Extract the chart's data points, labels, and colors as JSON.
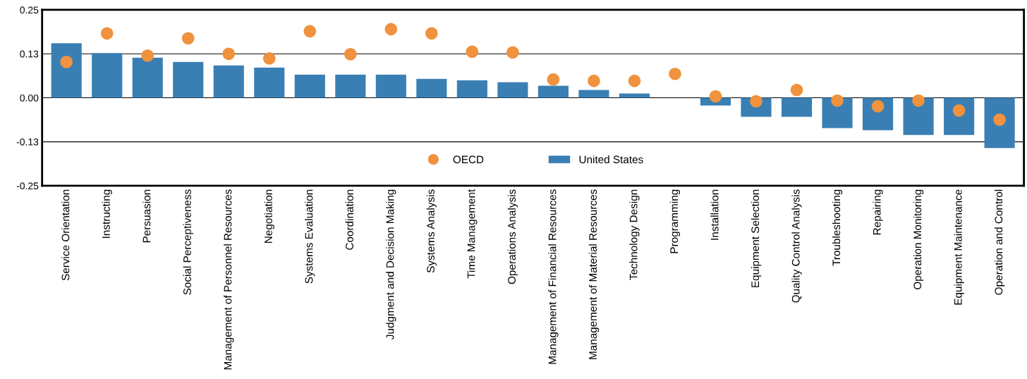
{
  "chart_data": {
    "type": "bar",
    "categories": [
      "Service Orientation",
      "Instructing",
      "Persuasion",
      "Social Perceptiveness",
      "Management of Personnel Resources",
      "Negotiation",
      "Systems Evaluation",
      "Coordination",
      "Judgment and Decision Making",
      "Systems Analysis",
      "Time Management",
      "Operations Analysis",
      "Management of Financial Resources",
      "Management of Material Resources",
      "Technology Design",
      "Programming",
      "Installation",
      "Equipment Selection",
      "Quality Control Analysis",
      "Troubleshooting",
      "Repairing",
      "Operation Monitoring",
      "Equipment Maintenance",
      "Operation and Control"
    ],
    "series": [
      {
        "name": "OECD",
        "type": "scatter",
        "color": "#f0923e",
        "values": [
          0.102,
          0.183,
          0.12,
          0.169,
          0.125,
          0.112,
          0.189,
          0.124,
          0.195,
          0.183,
          0.131,
          0.129,
          0.052,
          0.048,
          0.048,
          0.068,
          0.004,
          -0.01,
          0.022,
          -0.008,
          -0.024,
          -0.008,
          -0.036,
          -0.062
        ]
      },
      {
        "name": "United States",
        "color": "#3a7fb4",
        "values": [
          0.155,
          0.127,
          0.114,
          0.102,
          0.092,
          0.086,
          0.066,
          0.066,
          0.066,
          0.054,
          0.05,
          0.044,
          0.034,
          0.022,
          0.012,
          0,
          -0.022,
          -0.054,
          -0.054,
          -0.086,
          -0.092,
          -0.106,
          -0.106,
          -0.143
        ]
      }
    ],
    "ylim": [
      -0.25,
      0.25
    ],
    "yticks": [
      {
        "value": -0.25,
        "label": "-0.25"
      },
      {
        "value": -0.125,
        "label": "-0.13"
      },
      {
        "value": 0,
        "label": "0.00"
      },
      {
        "value": 0.125,
        "label": "0.13"
      },
      {
        "value": 0.25,
        "label": "0.25"
      }
    ],
    "grid": "y",
    "legend": "bottom",
    "marker": "circle"
  }
}
